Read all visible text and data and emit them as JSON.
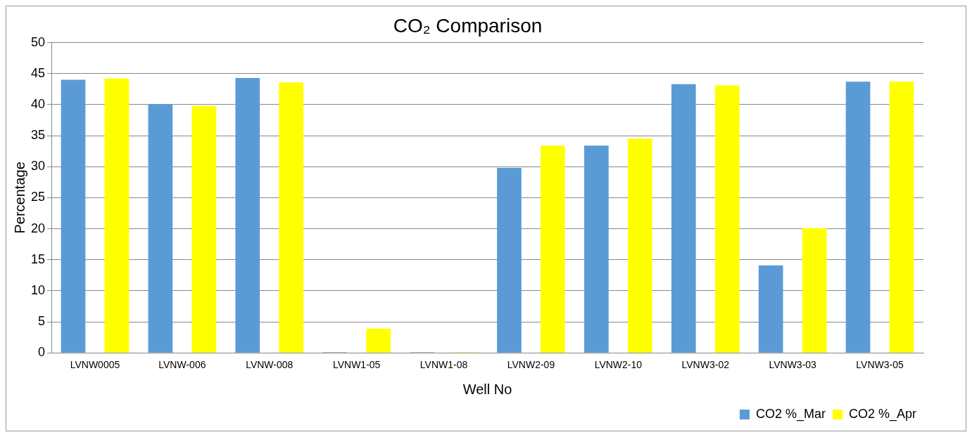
{
  "chart_data": {
    "type": "bar",
    "title": "CO₂ Comparison",
    "xlabel": "Well No",
    "ylabel": "Percentage",
    "categories": [
      "LVNW0005",
      "LVNW-006",
      "LVNW-008",
      "LVNW1-05",
      "LVNW1-08",
      "LVNW2-09",
      "LVNW2-10",
      "LVNW3-02",
      "LVNW3-03",
      "LVNW3-05"
    ],
    "series": [
      {
        "name": "CO2 %_Mar",
        "color": "#5b9bd5",
        "values": [
          44.0,
          40.1,
          44.3,
          0.1,
          0.1,
          29.8,
          33.4,
          43.3,
          14.1,
          43.7
        ]
      },
      {
        "name": "CO2 %_Apr",
        "color": "#ffff00",
        "values": [
          44.2,
          39.8,
          43.6,
          3.9,
          0.1,
          33.4,
          34.5,
          43.1,
          20.1,
          43.7
        ]
      }
    ],
    "ylim": [
      0,
      50
    ],
    "yticks": [
      0,
      5,
      10,
      15,
      20,
      25,
      30,
      35,
      40,
      45,
      50
    ],
    "grid": "y",
    "legend": "bottom right"
  }
}
